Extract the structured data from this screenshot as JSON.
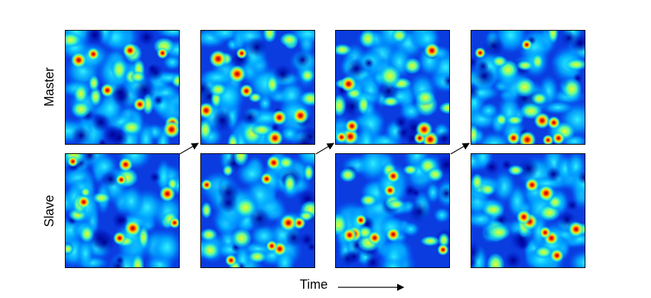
{
  "row_labels": [
    "Master",
    "Slave"
  ],
  "axis_label": "Time"
}
